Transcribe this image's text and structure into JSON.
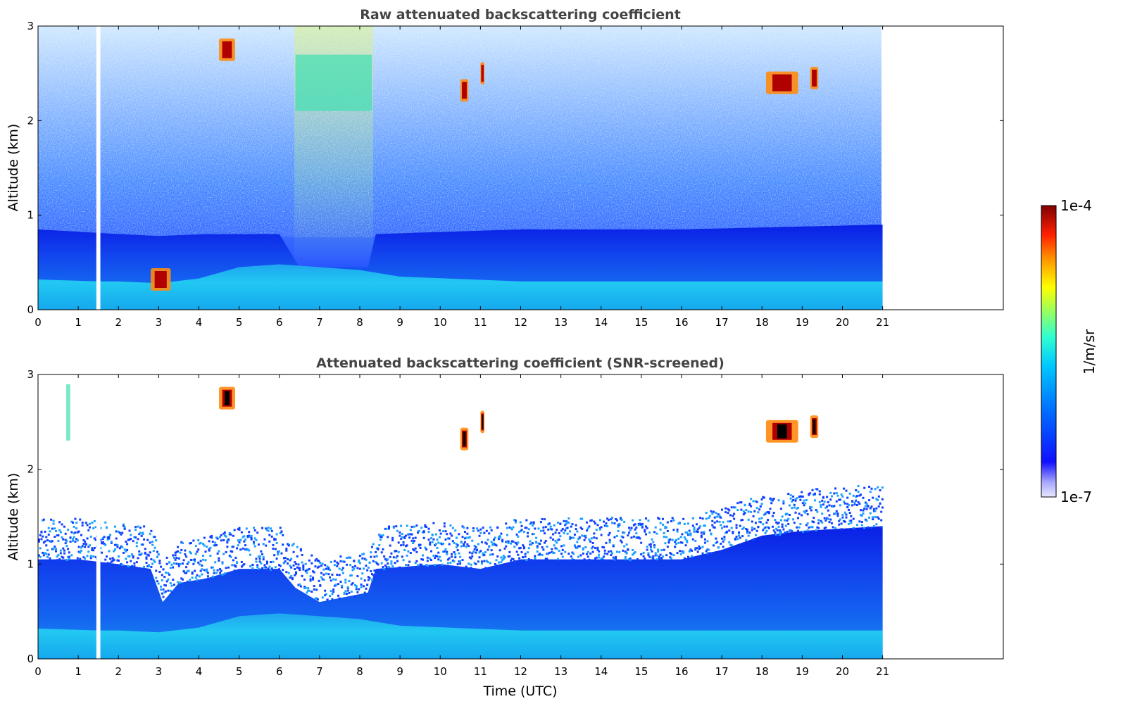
{
  "chart_data": [
    {
      "type": "heatmap",
      "title": "Raw attenuated backscattering coefficient",
      "xlabel": "",
      "ylabel": "Altitude (km)",
      "xlim": [
        0,
        24
      ],
      "ylim": [
        0,
        3
      ],
      "xticks": [
        "0",
        "1",
        "2",
        "3",
        "4",
        "5",
        "6",
        "7",
        "8",
        "9",
        "10",
        "11",
        "12",
        "13",
        "14",
        "15",
        "16",
        "17",
        "18",
        "19",
        "20",
        "21"
      ],
      "yticks": [
        "0",
        "1",
        "2",
        "3"
      ],
      "data_extent_hours": [
        0,
        21
      ],
      "missing_data_hours": [
        1.45,
        1.55
      ],
      "layers": [
        {
          "name": "surface layer",
          "x_start": 0,
          "x_end": 21,
          "top_km": 0.3,
          "value": "high"
        },
        {
          "name": "boundary layer",
          "x_start": 0,
          "x_end": 21,
          "top_km": 0.9,
          "value": "medium"
        },
        {
          "name": "noise",
          "x_start": 0,
          "x_end": 21,
          "top_km": 3.0,
          "value": "low-noisy"
        }
      ],
      "features": [
        {
          "x_start": 2.8,
          "x_end": 3.3,
          "alt_km": 0.32,
          "value": "1e-4"
        },
        {
          "x_start": 4.5,
          "x_end": 4.9,
          "alt_km": 2.75,
          "value": "1e-4"
        },
        {
          "x_start": 6.4,
          "x_end": 8.3,
          "alt_km": 2.4,
          "value": "~1e-5 (noisy)"
        },
        {
          "x_start": 10.5,
          "x_end": 10.7,
          "alt_km": 2.32,
          "value": "1e-4"
        },
        {
          "x_start": 11.0,
          "x_end": 11.1,
          "alt_km": 2.5,
          "value": "1e-4"
        },
        {
          "x_start": 18.1,
          "x_end": 18.9,
          "alt_km": 2.4,
          "value": "1e-4"
        },
        {
          "x_start": 19.2,
          "x_end": 19.4,
          "alt_km": 2.45,
          "value": "1e-4"
        }
      ]
    },
    {
      "type": "heatmap",
      "title": "Attenuated backscattering coefficient (SNR-screened)",
      "xlabel": "Time (UTC)",
      "ylabel": "Altitude (km)",
      "xlim": [
        0,
        24
      ],
      "ylim": [
        0,
        3
      ],
      "xticks": [
        "0",
        "1",
        "2",
        "3",
        "4",
        "5",
        "6",
        "7",
        "8",
        "9",
        "10",
        "11",
        "12",
        "13",
        "14",
        "15",
        "16",
        "17",
        "18",
        "19",
        "20",
        "21"
      ],
      "yticks": [
        "0",
        "1",
        "2",
        "3"
      ],
      "data_extent_hours": [
        0,
        21
      ],
      "missing_data_hours": [
        1.45,
        1.55
      ],
      "boundary_layer_top_km": [
        [
          0,
          1.05
        ],
        [
          1,
          1.05
        ],
        [
          2,
          1.0
        ],
        [
          2.8,
          0.95
        ],
        [
          3.1,
          0.6
        ],
        [
          3.5,
          0.8
        ],
        [
          4.2,
          0.85
        ],
        [
          5,
          0.95
        ],
        [
          6,
          0.95
        ],
        [
          6.4,
          0.75
        ],
        [
          7,
          0.6
        ],
        [
          8.2,
          0.7
        ],
        [
          8.4,
          0.95
        ],
        [
          10,
          1.0
        ],
        [
          11,
          0.95
        ],
        [
          12,
          1.05
        ],
        [
          14,
          1.05
        ],
        [
          16,
          1.05
        ],
        [
          17,
          1.15
        ],
        [
          18,
          1.3
        ],
        [
          19,
          1.35
        ],
        [
          21,
          1.4
        ]
      ],
      "features": [
        {
          "x_start": 4.5,
          "x_end": 4.9,
          "alt_km": 2.75,
          "value": "1e-4"
        },
        {
          "x_start": 10.5,
          "x_end": 10.7,
          "alt_km": 2.32,
          "value": "1e-4"
        },
        {
          "x_start": 11.0,
          "x_end": 11.1,
          "alt_km": 2.5,
          "value": "1e-4"
        },
        {
          "x_start": 18.1,
          "x_end": 18.9,
          "alt_km": 2.4,
          "value": "1e-4"
        },
        {
          "x_start": 19.2,
          "x_end": 19.4,
          "alt_km": 2.45,
          "value": "1e-4"
        },
        {
          "x_start": 0.7,
          "x_end": 0.8,
          "alt_km": 2.6,
          "value": "~1e-5"
        }
      ]
    }
  ],
  "colorbar": {
    "label": "1/m/sr",
    "max_label": "1e-4",
    "min_label": "1e-7",
    "scale": "log",
    "colormap": "jet",
    "colors": [
      "#00007f",
      "#0000ff",
      "#007fff",
      "#00ffff",
      "#7fff7f",
      "#ffff00",
      "#ff7f00",
      "#ff0000",
      "#7f0000"
    ]
  }
}
